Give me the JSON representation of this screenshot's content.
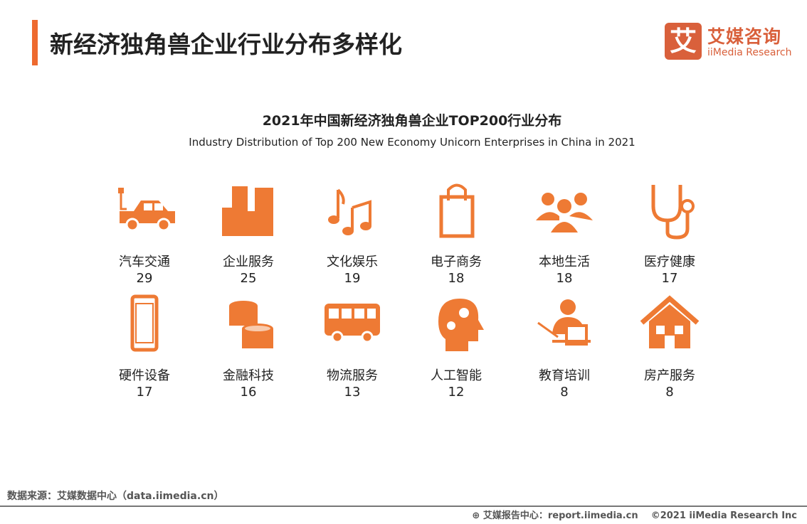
{
  "header": {
    "title": "新经济独角兽企业行业分布多样化"
  },
  "logo": {
    "mark": "艾",
    "cn": "艾媒咨询",
    "en": "iiMedia Research"
  },
  "chart_data": {
    "type": "table",
    "title": "2021年中国新经济独角兽企业TOP200行业分布",
    "subtitle": "Industry Distribution of Top 200 New Economy Unicorn Enterprises in China in 2021",
    "categories": [
      "汽车交通",
      "企业服务",
      "文化娱乐",
      "电子商务",
      "本地生活",
      "医疗健康",
      "硬件设备",
      "金融科技",
      "物流服务",
      "人工智能",
      "教育培训",
      "房产服务"
    ],
    "values": [
      29,
      25,
      19,
      18,
      18,
      17,
      17,
      16,
      13,
      12,
      8,
      8
    ],
    "icons": [
      "car-icon",
      "buildings-icon",
      "music-icon",
      "shopping-bag-icon",
      "people-icon",
      "stethoscope-icon",
      "phone-icon",
      "coins-icon",
      "bus-icon",
      "brain-gears-icon",
      "teacher-icon",
      "house-icon"
    ],
    "color": "#ee7a34"
  },
  "footer": {
    "source": "数据来源：艾媒数据中心（data.iimedia.cn）",
    "report": "艾媒报告中心：report.iimedia.cn",
    "copyright": "©2021  iiMedia Research  Inc"
  }
}
